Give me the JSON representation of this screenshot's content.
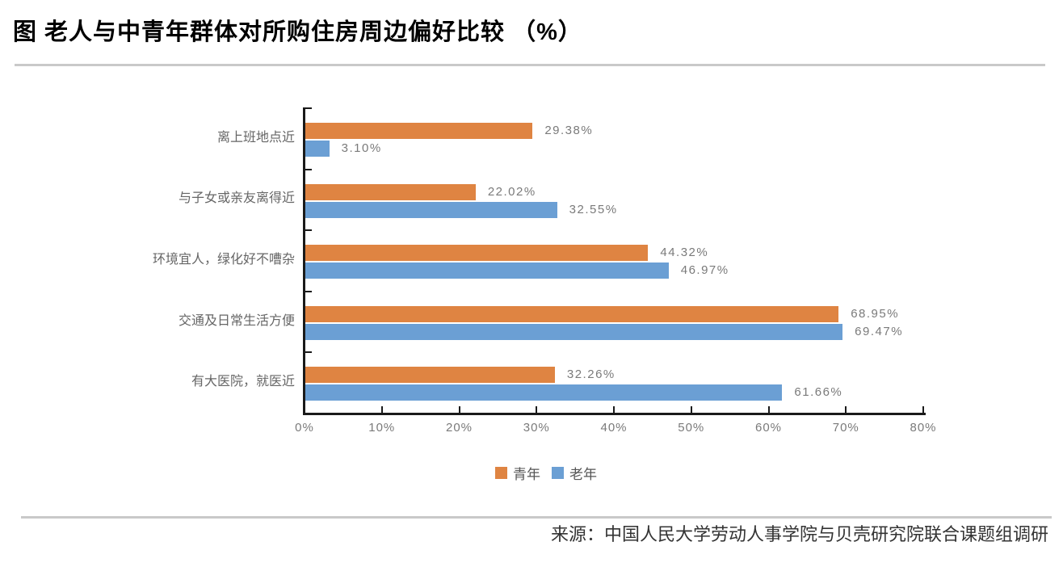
{
  "page": {
    "title": "图 老人与中青年群体对所购住房周边偏好比较 （%）",
    "source": "来源：中国人民大学劳动人事学院与贝壳研究院联合课题组调研"
  },
  "chart_data": {
    "type": "bar",
    "orientation": "horizontal",
    "title": "图 老人与中青年群体对所购住房周边偏好比较 （%）",
    "categories": [
      "离上班地点近",
      "与子女或亲友离得近",
      "环境宜人，绿化好不嘈杂",
      "交通及日常生活方便",
      "有大医院，就医近"
    ],
    "series": [
      {
        "name": "青年",
        "color": "#DF8442",
        "values": [
          29.38,
          22.02,
          44.32,
          68.95,
          32.26
        ]
      },
      {
        "name": "老年",
        "color": "#6B9FD4",
        "values": [
          3.1,
          32.55,
          46.97,
          69.47,
          61.66
        ]
      }
    ],
    "value_labels": [
      [
        "29.38%",
        "3.10%"
      ],
      [
        "22.02%",
        "32.55%"
      ],
      [
        "44.32%",
        "46.97%"
      ],
      [
        "68.95%",
        "69.47%"
      ],
      [
        "32.26%",
        "61.66%"
      ]
    ],
    "xlim": [
      0,
      80
    ],
    "x_tick_labels": [
      "0%",
      "10%",
      "20%",
      "30%",
      "40%",
      "50%",
      "60%",
      "70%",
      "80%"
    ],
    "grid": false,
    "legend_position": "bottom",
    "axis_color": "#1a1a1a",
    "value_label_color": "#7a7a7a",
    "source_note": "来源：中国人民大学劳动人事学院与贝壳研究院联合课题组调研"
  }
}
